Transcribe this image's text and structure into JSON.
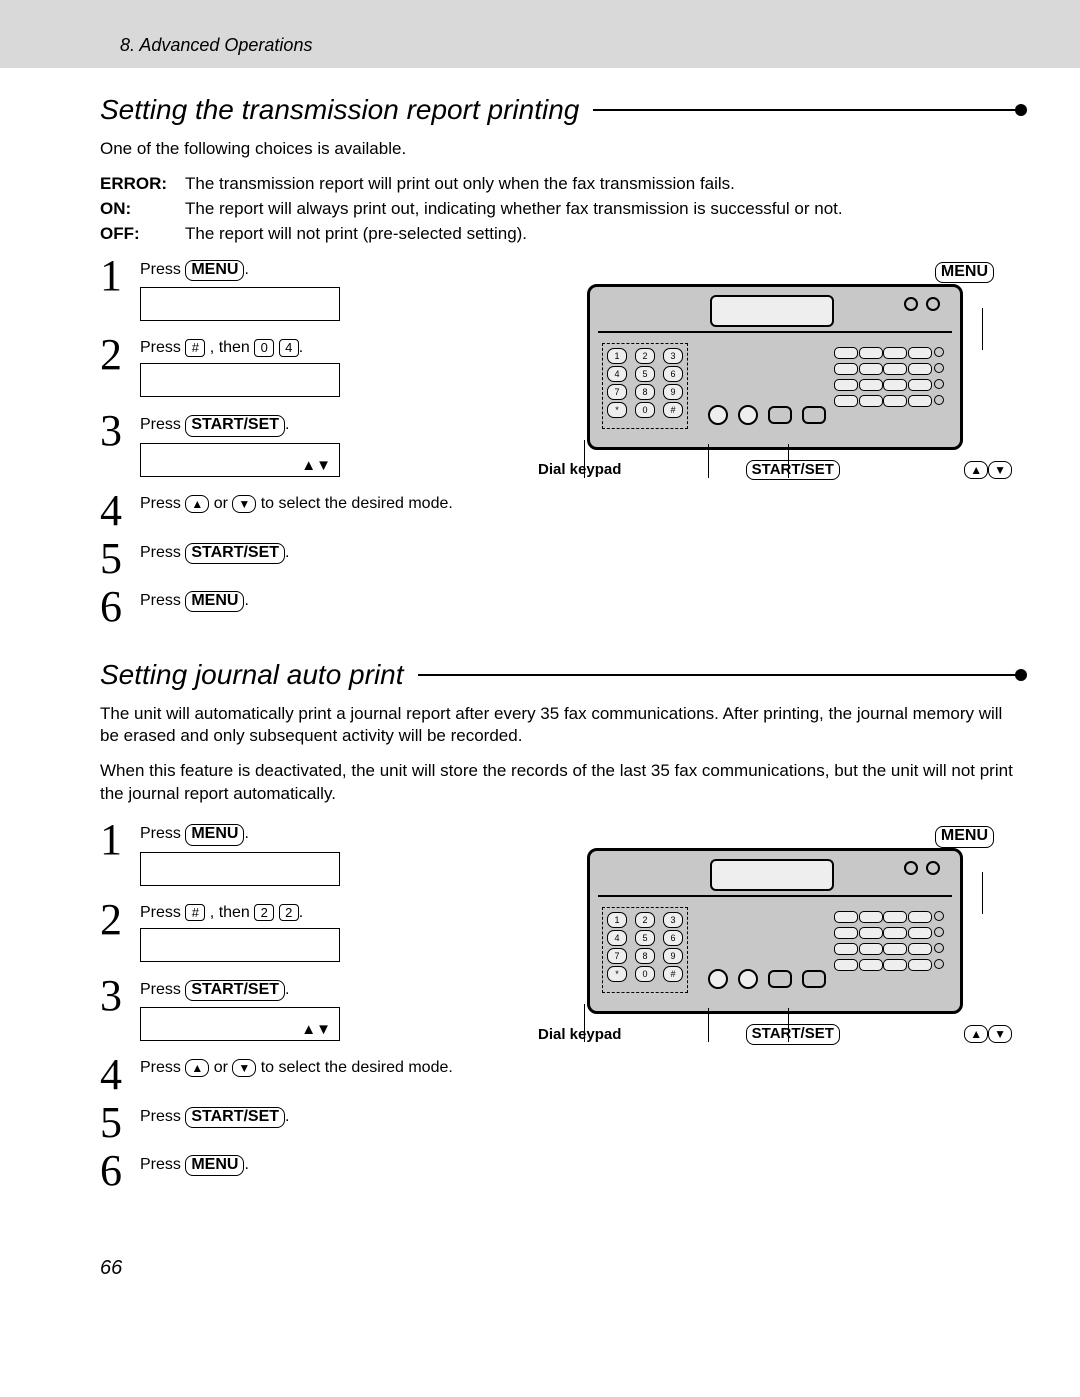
{
  "header": {
    "chapter": "8.  Advanced Operations"
  },
  "section1": {
    "title": "Setting the transmission report printing",
    "intro": "One of the following choices is available.",
    "definitions": [
      {
        "label": "ERROR:",
        "text": "The transmission report will print out only when the fax transmission fails."
      },
      {
        "label": "ON:",
        "text": "The report will always print out, indicating whether fax transmission is successful or not."
      },
      {
        "label": "OFF:",
        "text": "The report will not print (pre-selected setting)."
      }
    ],
    "steps": {
      "s1_press": "Press ",
      "s2_press": "Press ",
      "s2_then": ", then ",
      "s2_key1": "0",
      "s2_key2": "4",
      "s3_press": "Press ",
      "s3_arrows": "▲▼",
      "s4a": "Press ",
      "s4b": " or ",
      "s4c": " to select the desired mode.",
      "s5_press": "Press ",
      "s6_press": "Press "
    },
    "step_numbers": [
      "1",
      "2",
      "3",
      "4",
      "5",
      "6"
    ],
    "labels": {
      "menu": "MENU",
      "hash": "#",
      "start_set": "START/SET",
      "dial_keypad": "Dial keypad",
      "up": "▲",
      "down": "▼"
    }
  },
  "section2": {
    "title": "Setting journal auto print",
    "para1": "The unit will automatically print a journal report after every 35 fax communications. After printing, the journal memory will be erased and only subsequent activity will be recorded.",
    "para2": "When this feature is deactivated, the unit will store the records of the last 35 fax communications, but the unit will not print the journal report automatically.",
    "steps": {
      "s1_press": "Press ",
      "s2_press": "Press ",
      "s2_then": ", then ",
      "s2_key1": "2",
      "s2_key2": "2",
      "s3_press": "Press ",
      "s3_arrows": "▲▼",
      "s4a": "Press ",
      "s4b": " or ",
      "s4c": " to select the desired mode.",
      "s5_press": "Press ",
      "s6_press": "Press "
    },
    "step_numbers": [
      "1",
      "2",
      "3",
      "4",
      "5",
      "6"
    ],
    "labels": {
      "menu": "MENU",
      "hash": "#",
      "start_set": "START/SET",
      "dial_keypad": "Dial keypad",
      "up": "▲",
      "down": "▼"
    }
  },
  "page_number": "66",
  "colors": {
    "header_bg": "#d9d9d9",
    "panel_bg": "#c8c8c8",
    "text": "#000000",
    "page_bg": "#ffffff"
  }
}
